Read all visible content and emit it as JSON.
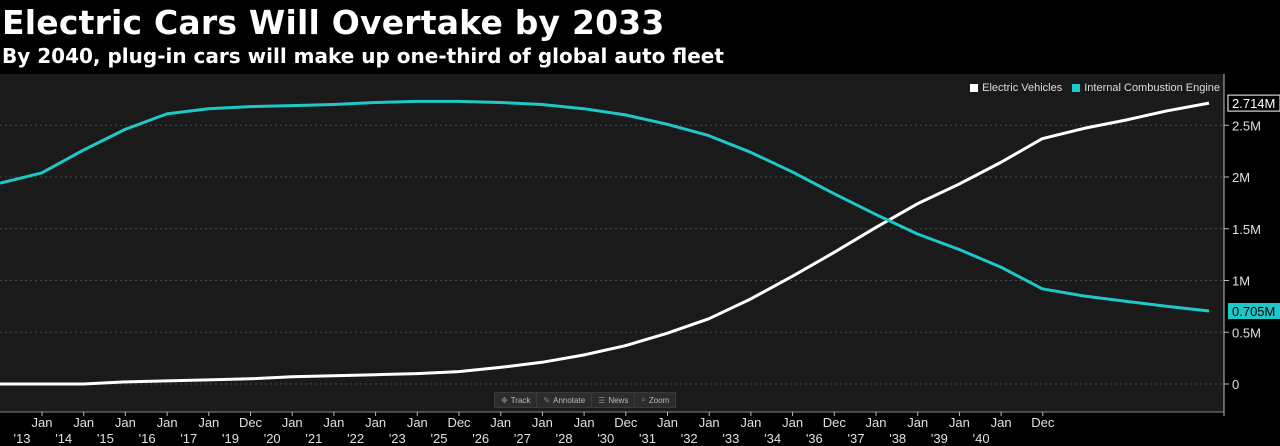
{
  "header": {
    "title": "Electric Cars Will Overtake by 2033",
    "subtitle": "By 2040, plug-in cars will make up one-third of global auto fleet"
  },
  "legend": [
    {
      "name": "Electric Vehicles",
      "color": "#ffffff"
    },
    {
      "name": "Internal Combustion Engine",
      "color": "#1fc8c8"
    }
  ],
  "toolbar": [
    {
      "label": "Track",
      "icon": "track-icon"
    },
    {
      "label": "Annotate",
      "icon": "annotate-icon"
    },
    {
      "label": "News",
      "icon": "news-icon"
    },
    {
      "label": "Zoom",
      "icon": "zoom-icon"
    }
  ],
  "colors": {
    "background": "#000000",
    "plot_background": "#1a1a1a",
    "grid": "#4a4a4a",
    "ev": "#ffffff",
    "ice": "#1fc8c8"
  },
  "chart_data": {
    "type": "line",
    "title": "Electric Cars Will Overtake by 2033",
    "subtitle": "By 2040, plug-in cars will make up one-third of global auto fleet",
    "ylim": [
      -0.2,
      2.95
    ],
    "yticks": [
      {
        "value": 0,
        "label": "0"
      },
      {
        "value": 0.5,
        "label": "0.5M"
      },
      {
        "value": 1.0,
        "label": "1M"
      },
      {
        "value": 1.5,
        "label": "1.5M"
      },
      {
        "value": 2.0,
        "label": "2M"
      },
      {
        "value": 2.5,
        "label": "2.5M"
      }
    ],
    "xticks": [
      {
        "top": "Jan",
        "bottom": "'13"
      },
      {
        "top": "Jan",
        "bottom": "'14"
      },
      {
        "top": "Jan",
        "bottom": "'15"
      },
      {
        "top": "Jan",
        "bottom": "'16"
      },
      {
        "top": "Jan",
        "bottom": "'17"
      },
      {
        "top": "Dec",
        "bottom": "'19"
      },
      {
        "top": "Jan",
        "bottom": "'20"
      },
      {
        "top": "Jan",
        "bottom": "'21"
      },
      {
        "top": "Jan",
        "bottom": "'22"
      },
      {
        "top": "Jan",
        "bottom": "'23"
      },
      {
        "top": "Dec",
        "bottom": "'25"
      },
      {
        "top": "Jan",
        "bottom": "'26"
      },
      {
        "top": "Jan",
        "bottom": "'27"
      },
      {
        "top": "Jan",
        "bottom": "'28"
      },
      {
        "top": "Dec",
        "bottom": "'30"
      },
      {
        "top": "Jan",
        "bottom": "'31"
      },
      {
        "top": "Jan",
        "bottom": "'32"
      },
      {
        "top": "Jan",
        "bottom": "'33"
      },
      {
        "top": "Jan",
        "bottom": "'34"
      },
      {
        "top": "Dec",
        "bottom": "'36"
      },
      {
        "top": "Jan",
        "bottom": "'37"
      },
      {
        "top": "Jan",
        "bottom": "'38"
      },
      {
        "top": "Jan",
        "bottom": "'39"
      },
      {
        "top": "Jan",
        "bottom": "'40"
      },
      {
        "top": "Dec",
        "bottom": ""
      }
    ],
    "series": [
      {
        "name": "Electric Vehicles",
        "color": "#ffffff",
        "last_label": "2.714M",
        "values": [
          0.0,
          0.0,
          0.0,
          0.02,
          0.03,
          0.04,
          0.05,
          0.07,
          0.08,
          0.09,
          0.1,
          0.12,
          0.16,
          0.21,
          0.28,
          0.37,
          0.49,
          0.63,
          0.82,
          1.04,
          1.27,
          1.51,
          1.74,
          1.93,
          2.14,
          2.37,
          2.47,
          2.55,
          2.64,
          2.714
        ]
      },
      {
        "name": "Internal Combustion Engine",
        "color": "#1fc8c8",
        "last_label": "0.705M",
        "values": [
          1.94,
          2.04,
          2.26,
          2.46,
          2.61,
          2.66,
          2.68,
          2.69,
          2.7,
          2.72,
          2.73,
          2.73,
          2.72,
          2.7,
          2.66,
          2.6,
          2.51,
          2.4,
          2.24,
          2.05,
          1.84,
          1.64,
          1.45,
          1.3,
          1.13,
          0.92,
          0.85,
          0.8,
          0.75,
          0.705
        ]
      }
    ]
  }
}
